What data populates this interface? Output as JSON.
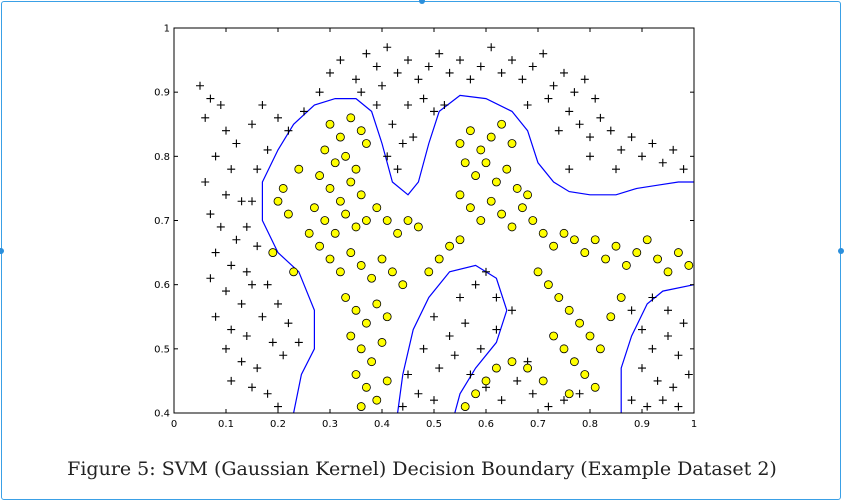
{
  "figure": {
    "caption": "Figure 5: SVM (Gaussian Kernel) Decision Boundary (Example Dataset 2)"
  },
  "chart_data": {
    "type": "scatter",
    "xlim": [
      0,
      1
    ],
    "ylim": [
      0.4,
      1
    ],
    "x_ticks": [
      "0",
      "0.1",
      "0.2",
      "0.3",
      "0.4",
      "0.5",
      "0.6",
      "0.7",
      "0.8",
      "0.9",
      "1"
    ],
    "y_ticks": [
      "0.4",
      "0.5",
      "0.6",
      "0.7",
      "0.8",
      "0.9",
      "1"
    ],
    "grid": false,
    "legend": "none",
    "colors": {
      "positive_marker": "#000000",
      "negative_fill": "#ffff00",
      "negative_edge": "#000000",
      "boundary": "#0000ff"
    },
    "series": [
      {
        "marker": "plus",
        "points": [
          [
            0.05,
            0.91
          ],
          [
            0.07,
            0.89
          ],
          [
            0.09,
            0.88
          ],
          [
            0.06,
            0.86
          ],
          [
            0.1,
            0.84
          ],
          [
            0.12,
            0.82
          ],
          [
            0.08,
            0.8
          ],
          [
            0.11,
            0.78
          ],
          [
            0.06,
            0.76
          ],
          [
            0.1,
            0.74
          ],
          [
            0.13,
            0.73
          ],
          [
            0.07,
            0.71
          ],
          [
            0.09,
            0.69
          ],
          [
            0.12,
            0.67
          ],
          [
            0.08,
            0.65
          ],
          [
            0.11,
            0.63
          ],
          [
            0.14,
            0.62
          ],
          [
            0.07,
            0.61
          ],
          [
            0.1,
            0.59
          ],
          [
            0.13,
            0.57
          ],
          [
            0.08,
            0.55
          ],
          [
            0.11,
            0.53
          ],
          [
            0.14,
            0.52
          ],
          [
            0.1,
            0.5
          ],
          [
            0.13,
            0.48
          ],
          [
            0.16,
            0.47
          ],
          [
            0.11,
            0.45
          ],
          [
            0.15,
            0.44
          ],
          [
            0.18,
            0.43
          ],
          [
            0.2,
            0.41
          ],
          [
            0.17,
            0.88
          ],
          [
            0.2,
            0.86
          ],
          [
            0.22,
            0.84
          ],
          [
            0.15,
            0.85
          ],
          [
            0.18,
            0.81
          ],
          [
            0.16,
            0.78
          ],
          [
            0.15,
            0.73
          ],
          [
            0.14,
            0.69
          ],
          [
            0.16,
            0.66
          ],
          [
            0.18,
            0.6
          ],
          [
            0.2,
            0.57
          ],
          [
            0.22,
            0.54
          ],
          [
            0.19,
            0.51
          ],
          [
            0.21,
            0.49
          ],
          [
            0.24,
            0.51
          ],
          [
            0.17,
            0.55
          ],
          [
            0.15,
            0.6
          ],
          [
            0.25,
            0.87
          ],
          [
            0.28,
            0.9
          ],
          [
            0.3,
            0.93
          ],
          [
            0.32,
            0.95
          ],
          [
            0.35,
            0.92
          ],
          [
            0.37,
            0.96
          ],
          [
            0.39,
            0.94
          ],
          [
            0.41,
            0.97
          ],
          [
            0.43,
            0.93
          ],
          [
            0.45,
            0.95
          ],
          [
            0.47,
            0.92
          ],
          [
            0.49,
            0.94
          ],
          [
            0.51,
            0.96
          ],
          [
            0.53,
            0.93
          ],
          [
            0.55,
            0.95
          ],
          [
            0.57,
            0.92
          ],
          [
            0.59,
            0.94
          ],
          [
            0.61,
            0.97
          ],
          [
            0.63,
            0.93
          ],
          [
            0.65,
            0.95
          ],
          [
            0.67,
            0.92
          ],
          [
            0.69,
            0.94
          ],
          [
            0.71,
            0.96
          ],
          [
            0.73,
            0.91
          ],
          [
            0.75,
            0.93
          ],
          [
            0.77,
            0.9
          ],
          [
            0.79,
            0.92
          ],
          [
            0.81,
            0.89
          ],
          [
            0.76,
            0.87
          ],
          [
            0.72,
            0.89
          ],
          [
            0.68,
            0.88
          ],
          [
            0.74,
            0.84
          ],
          [
            0.78,
            0.85
          ],
          [
            0.8,
            0.83
          ],
          [
            0.82,
            0.86
          ],
          [
            0.84,
            0.84
          ],
          [
            0.86,
            0.81
          ],
          [
            0.88,
            0.83
          ],
          [
            0.9,
            0.8
          ],
          [
            0.92,
            0.82
          ],
          [
            0.94,
            0.79
          ],
          [
            0.96,
            0.81
          ],
          [
            0.98,
            0.78
          ],
          [
            0.85,
            0.78
          ],
          [
            0.8,
            0.8
          ],
          [
            0.76,
            0.78
          ],
          [
            0.42,
            0.85
          ],
          [
            0.44,
            0.82
          ],
          [
            0.41,
            0.8
          ],
          [
            0.43,
            0.78
          ],
          [
            0.46,
            0.83
          ],
          [
            0.39,
            0.88
          ],
          [
            0.36,
            0.9
          ],
          [
            0.4,
            0.91
          ],
          [
            0.48,
            0.89
          ],
          [
            0.5,
            0.87
          ],
          [
            0.52,
            0.88
          ],
          [
            0.45,
            0.88
          ],
          [
            0.55,
            0.58
          ],
          [
            0.58,
            0.6
          ],
          [
            0.6,
            0.62
          ],
          [
            0.62,
            0.58
          ],
          [
            0.5,
            0.55
          ],
          [
            0.53,
            0.52
          ],
          [
            0.56,
            0.54
          ],
          [
            0.59,
            0.5
          ],
          [
            0.62,
            0.53
          ],
          [
            0.65,
            0.56
          ],
          [
            0.48,
            0.5
          ],
          [
            0.51,
            0.47
          ],
          [
            0.54,
            0.49
          ],
          [
            0.57,
            0.46
          ],
          [
            0.6,
            0.44
          ],
          [
            0.45,
            0.46
          ],
          [
            0.47,
            0.43
          ],
          [
            0.5,
            0.42
          ],
          [
            0.44,
            0.41
          ],
          [
            0.63,
            0.42
          ],
          [
            0.66,
            0.45
          ],
          [
            0.69,
            0.43
          ],
          [
            0.72,
            0.41
          ],
          [
            0.75,
            0.42
          ],
          [
            0.78,
            0.43
          ],
          [
            0.68,
            0.48
          ],
          [
            0.88,
            0.56
          ],
          [
            0.9,
            0.53
          ],
          [
            0.92,
            0.5
          ],
          [
            0.95,
            0.52
          ],
          [
            0.97,
            0.49
          ],
          [
            0.9,
            0.47
          ],
          [
            0.93,
            0.45
          ],
          [
            0.96,
            0.44
          ],
          [
            0.99,
            0.46
          ],
          [
            0.88,
            0.42
          ],
          [
            0.91,
            0.41
          ],
          [
            0.94,
            0.42
          ],
          [
            0.97,
            0.41
          ],
          [
            0.95,
            0.56
          ],
          [
            0.98,
            0.54
          ],
          [
            0.92,
            0.58
          ]
        ]
      },
      {
        "marker": "circle",
        "points": [
          [
            0.3,
            0.85
          ],
          [
            0.32,
            0.83
          ],
          [
            0.34,
            0.86
          ],
          [
            0.36,
            0.84
          ],
          [
            0.29,
            0.81
          ],
          [
            0.31,
            0.79
          ],
          [
            0.33,
            0.8
          ],
          [
            0.35,
            0.78
          ],
          [
            0.37,
            0.82
          ],
          [
            0.28,
            0.77
          ],
          [
            0.3,
            0.75
          ],
          [
            0.32,
            0.73
          ],
          [
            0.34,
            0.76
          ],
          [
            0.36,
            0.74
          ],
          [
            0.27,
            0.72
          ],
          [
            0.29,
            0.7
          ],
          [
            0.31,
            0.68
          ],
          [
            0.33,
            0.71
          ],
          [
            0.35,
            0.69
          ],
          [
            0.37,
            0.7
          ],
          [
            0.39,
            0.72
          ],
          [
            0.41,
            0.7
          ],
          [
            0.43,
            0.68
          ],
          [
            0.45,
            0.7
          ],
          [
            0.47,
            0.69
          ],
          [
            0.26,
            0.68
          ],
          [
            0.28,
            0.66
          ],
          [
            0.3,
            0.64
          ],
          [
            0.32,
            0.62
          ],
          [
            0.34,
            0.65
          ],
          [
            0.36,
            0.63
          ],
          [
            0.38,
            0.61
          ],
          [
            0.4,
            0.64
          ],
          [
            0.42,
            0.62
          ],
          [
            0.44,
            0.6
          ],
          [
            0.33,
            0.58
          ],
          [
            0.35,
            0.56
          ],
          [
            0.37,
            0.54
          ],
          [
            0.39,
            0.57
          ],
          [
            0.41,
            0.55
          ],
          [
            0.34,
            0.52
          ],
          [
            0.36,
            0.5
          ],
          [
            0.38,
            0.48
          ],
          [
            0.4,
            0.51
          ],
          [
            0.35,
            0.46
          ],
          [
            0.37,
            0.44
          ],
          [
            0.39,
            0.42
          ],
          [
            0.41,
            0.45
          ],
          [
            0.36,
            0.41
          ],
          [
            0.55,
            0.82
          ],
          [
            0.57,
            0.84
          ],
          [
            0.59,
            0.81
          ],
          [
            0.61,
            0.83
          ],
          [
            0.63,
            0.85
          ],
          [
            0.65,
            0.82
          ],
          [
            0.56,
            0.79
          ],
          [
            0.58,
            0.77
          ],
          [
            0.6,
            0.79
          ],
          [
            0.62,
            0.76
          ],
          [
            0.64,
            0.78
          ],
          [
            0.66,
            0.75
          ],
          [
            0.68,
            0.74
          ],
          [
            0.55,
            0.74
          ],
          [
            0.57,
            0.72
          ],
          [
            0.59,
            0.7
          ],
          [
            0.61,
            0.73
          ],
          [
            0.63,
            0.71
          ],
          [
            0.65,
            0.69
          ],
          [
            0.67,
            0.72
          ],
          [
            0.69,
            0.7
          ],
          [
            0.71,
            0.68
          ],
          [
            0.73,
            0.66
          ],
          [
            0.75,
            0.68
          ],
          [
            0.77,
            0.67
          ],
          [
            0.79,
            0.65
          ],
          [
            0.81,
            0.67
          ],
          [
            0.83,
            0.64
          ],
          [
            0.85,
            0.66
          ],
          [
            0.87,
            0.63
          ],
          [
            0.89,
            0.65
          ],
          [
            0.91,
            0.67
          ],
          [
            0.93,
            0.64
          ],
          [
            0.95,
            0.62
          ],
          [
            0.97,
            0.65
          ],
          [
            0.99,
            0.63
          ],
          [
            0.53,
            0.66
          ],
          [
            0.51,
            0.64
          ],
          [
            0.49,
            0.62
          ],
          [
            0.55,
            0.67
          ],
          [
            0.7,
            0.62
          ],
          [
            0.72,
            0.6
          ],
          [
            0.74,
            0.58
          ],
          [
            0.76,
            0.56
          ],
          [
            0.78,
            0.54
          ],
          [
            0.8,
            0.52
          ],
          [
            0.82,
            0.5
          ],
          [
            0.84,
            0.55
          ],
          [
            0.86,
            0.58
          ],
          [
            0.73,
            0.52
          ],
          [
            0.75,
            0.5
          ],
          [
            0.77,
            0.48
          ],
          [
            0.79,
            0.46
          ],
          [
            0.81,
            0.44
          ],
          [
            0.76,
            0.43
          ],
          [
            0.71,
            0.45
          ],
          [
            0.68,
            0.47
          ],
          [
            0.65,
            0.48
          ],
          [
            0.62,
            0.47
          ],
          [
            0.6,
            0.45
          ],
          [
            0.58,
            0.43
          ],
          [
            0.56,
            0.41
          ],
          [
            0.2,
            0.73
          ],
          [
            0.22,
            0.71
          ],
          [
            0.19,
            0.65
          ],
          [
            0.23,
            0.62
          ],
          [
            0.21,
            0.75
          ],
          [
            0.24,
            0.78
          ]
        ]
      }
    ],
    "boundaries": [
      [
        [
          0.23,
          0.4
        ],
        [
          0.245,
          0.46
        ],
        [
          0.27,
          0.5
        ],
        [
          0.27,
          0.56
        ],
        [
          0.24,
          0.62
        ],
        [
          0.2,
          0.65
        ],
        [
          0.17,
          0.7
        ],
        [
          0.17,
          0.76
        ],
        [
          0.2,
          0.81
        ],
        [
          0.23,
          0.85
        ],
        [
          0.27,
          0.88
        ],
        [
          0.31,
          0.89
        ],
        [
          0.35,
          0.89
        ],
        [
          0.38,
          0.87
        ],
        [
          0.4,
          0.82
        ],
        [
          0.42,
          0.76
        ],
        [
          0.45,
          0.74
        ],
        [
          0.47,
          0.76
        ],
        [
          0.49,
          0.82
        ],
        [
          0.51,
          0.87
        ],
        [
          0.55,
          0.895
        ],
        [
          0.6,
          0.89
        ],
        [
          0.65,
          0.87
        ],
        [
          0.68,
          0.84
        ],
        [
          0.7,
          0.79
        ],
        [
          0.73,
          0.76
        ],
        [
          0.76,
          0.745
        ],
        [
          0.8,
          0.74
        ],
        [
          0.85,
          0.74
        ],
        [
          0.89,
          0.75
        ],
        [
          0.93,
          0.755
        ],
        [
          0.97,
          0.76
        ],
        [
          1,
          0.76
        ]
      ],
      [
        [
          0.43,
          0.4
        ],
        [
          0.44,
          0.46
        ],
        [
          0.46,
          0.53
        ],
        [
          0.49,
          0.58
        ],
        [
          0.53,
          0.62
        ],
        [
          0.58,
          0.63
        ],
        [
          0.62,
          0.61
        ],
        [
          0.64,
          0.56
        ],
        [
          0.62,
          0.51
        ],
        [
          0.58,
          0.47
        ],
        [
          0.55,
          0.43
        ],
        [
          0.54,
          0.4
        ]
      ],
      [
        [
          0.86,
          0.4
        ],
        [
          0.86,
          0.47
        ],
        [
          0.88,
          0.52
        ],
        [
          0.91,
          0.57
        ],
        [
          0.94,
          0.59
        ],
        [
          1,
          0.6
        ]
      ]
    ]
  }
}
